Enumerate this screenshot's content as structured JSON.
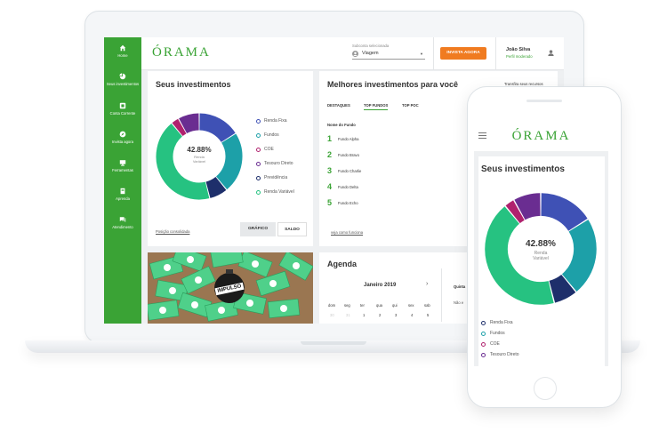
{
  "sidebar": {
    "items": [
      {
        "label": "Home",
        "icon": "home-icon"
      },
      {
        "label": "Seus investimentos",
        "icon": "pie-icon"
      },
      {
        "label": "Conta Corrente",
        "icon": "account-icon"
      },
      {
        "label": "Invista agora",
        "icon": "compass-icon"
      },
      {
        "label": "Ferramentas",
        "icon": "monitor-icon"
      },
      {
        "label": "Aprenda",
        "icon": "book-icon"
      },
      {
        "label": "Atendimento",
        "icon": "chat-icon"
      }
    ]
  },
  "header": {
    "brand": "ÓRAMA",
    "subaccount_label": "Subconta selecionada",
    "subaccount_value": "Viagem",
    "cta": "INVISTA AGORA",
    "user_name": "João Silva",
    "user_profile": "Perfil moderado"
  },
  "investments": {
    "title": "Seus investimentos",
    "center_value": "42.88%",
    "center_label_1": "Renda",
    "center_label_2": "Variável",
    "legend": [
      {
        "label": "Renda Fixa",
        "color": "#3f51b5"
      },
      {
        "label": "Fundos",
        "color": "#1da0a8"
      },
      {
        "label": "COE",
        "color": "#b0226e"
      },
      {
        "label": "Tesouro Direto",
        "color": "#6a2d91"
      },
      {
        "label": "Previdência",
        "color": "#1e2f6b"
      },
      {
        "label": "Renda Variável",
        "color": "#26c281"
      }
    ],
    "link": "Posição consolidada",
    "btn_chart": "GRÁFICO",
    "btn_balance": "SALDO"
  },
  "best": {
    "title": "Melhores investimentos para você",
    "link": "Transfira seus recursos",
    "tabs": [
      "DESTAQUES",
      "TOP FUNDOS",
      "TOP POC"
    ],
    "column": "Nome do Fundo",
    "funds": [
      {
        "rank": "1",
        "name": "Fundo Alpha"
      },
      {
        "rank": "2",
        "name": "Fundo Bravo"
      },
      {
        "rank": "3",
        "name": "Fundo Charlie"
      },
      {
        "rank": "4",
        "name": "Fundo Delta"
      },
      {
        "rank": "5",
        "name": "Fundo Echo"
      }
    ],
    "footer_link": "veja como funciona"
  },
  "promo": {
    "badge": "IMPULSO"
  },
  "agenda": {
    "title": "Agenda",
    "month": "Janeiro 2019",
    "weekdays": [
      "dom",
      "seg",
      "ter",
      "qua",
      "qui",
      "sex",
      "sab"
    ],
    "days": [
      "30",
      "31",
      "1",
      "2",
      "3",
      "4",
      "5"
    ],
    "side_title": "Quinta",
    "side_text": "Não e"
  },
  "mobile": {
    "brand": "ÓRAMA",
    "title": "Seus investimentos",
    "center_value": "42.88%",
    "center_label_1": "Renda",
    "center_label_2": "Variável",
    "legend": [
      {
        "label": "Renda Fixa",
        "color": "#1e2f6b"
      },
      {
        "label": "Fundos",
        "color": "#1da0a8"
      },
      {
        "label": "COE",
        "color": "#b0226e"
      },
      {
        "label": "Tesouro Direto",
        "color": "#6a2d91"
      }
    ]
  },
  "chart_data": {
    "type": "pie",
    "categories": [
      "Renda Fixa",
      "Fundos",
      "COE",
      "Tesouro Direto",
      "Previdência",
      "Renda Variável"
    ],
    "values": [
      16,
      23,
      3,
      8,
      7,
      42.88
    ],
    "colors": [
      "#3f51b5",
      "#1da0a8",
      "#b0226e",
      "#6a2d91",
      "#1e2f6b",
      "#26c281"
    ]
  }
}
